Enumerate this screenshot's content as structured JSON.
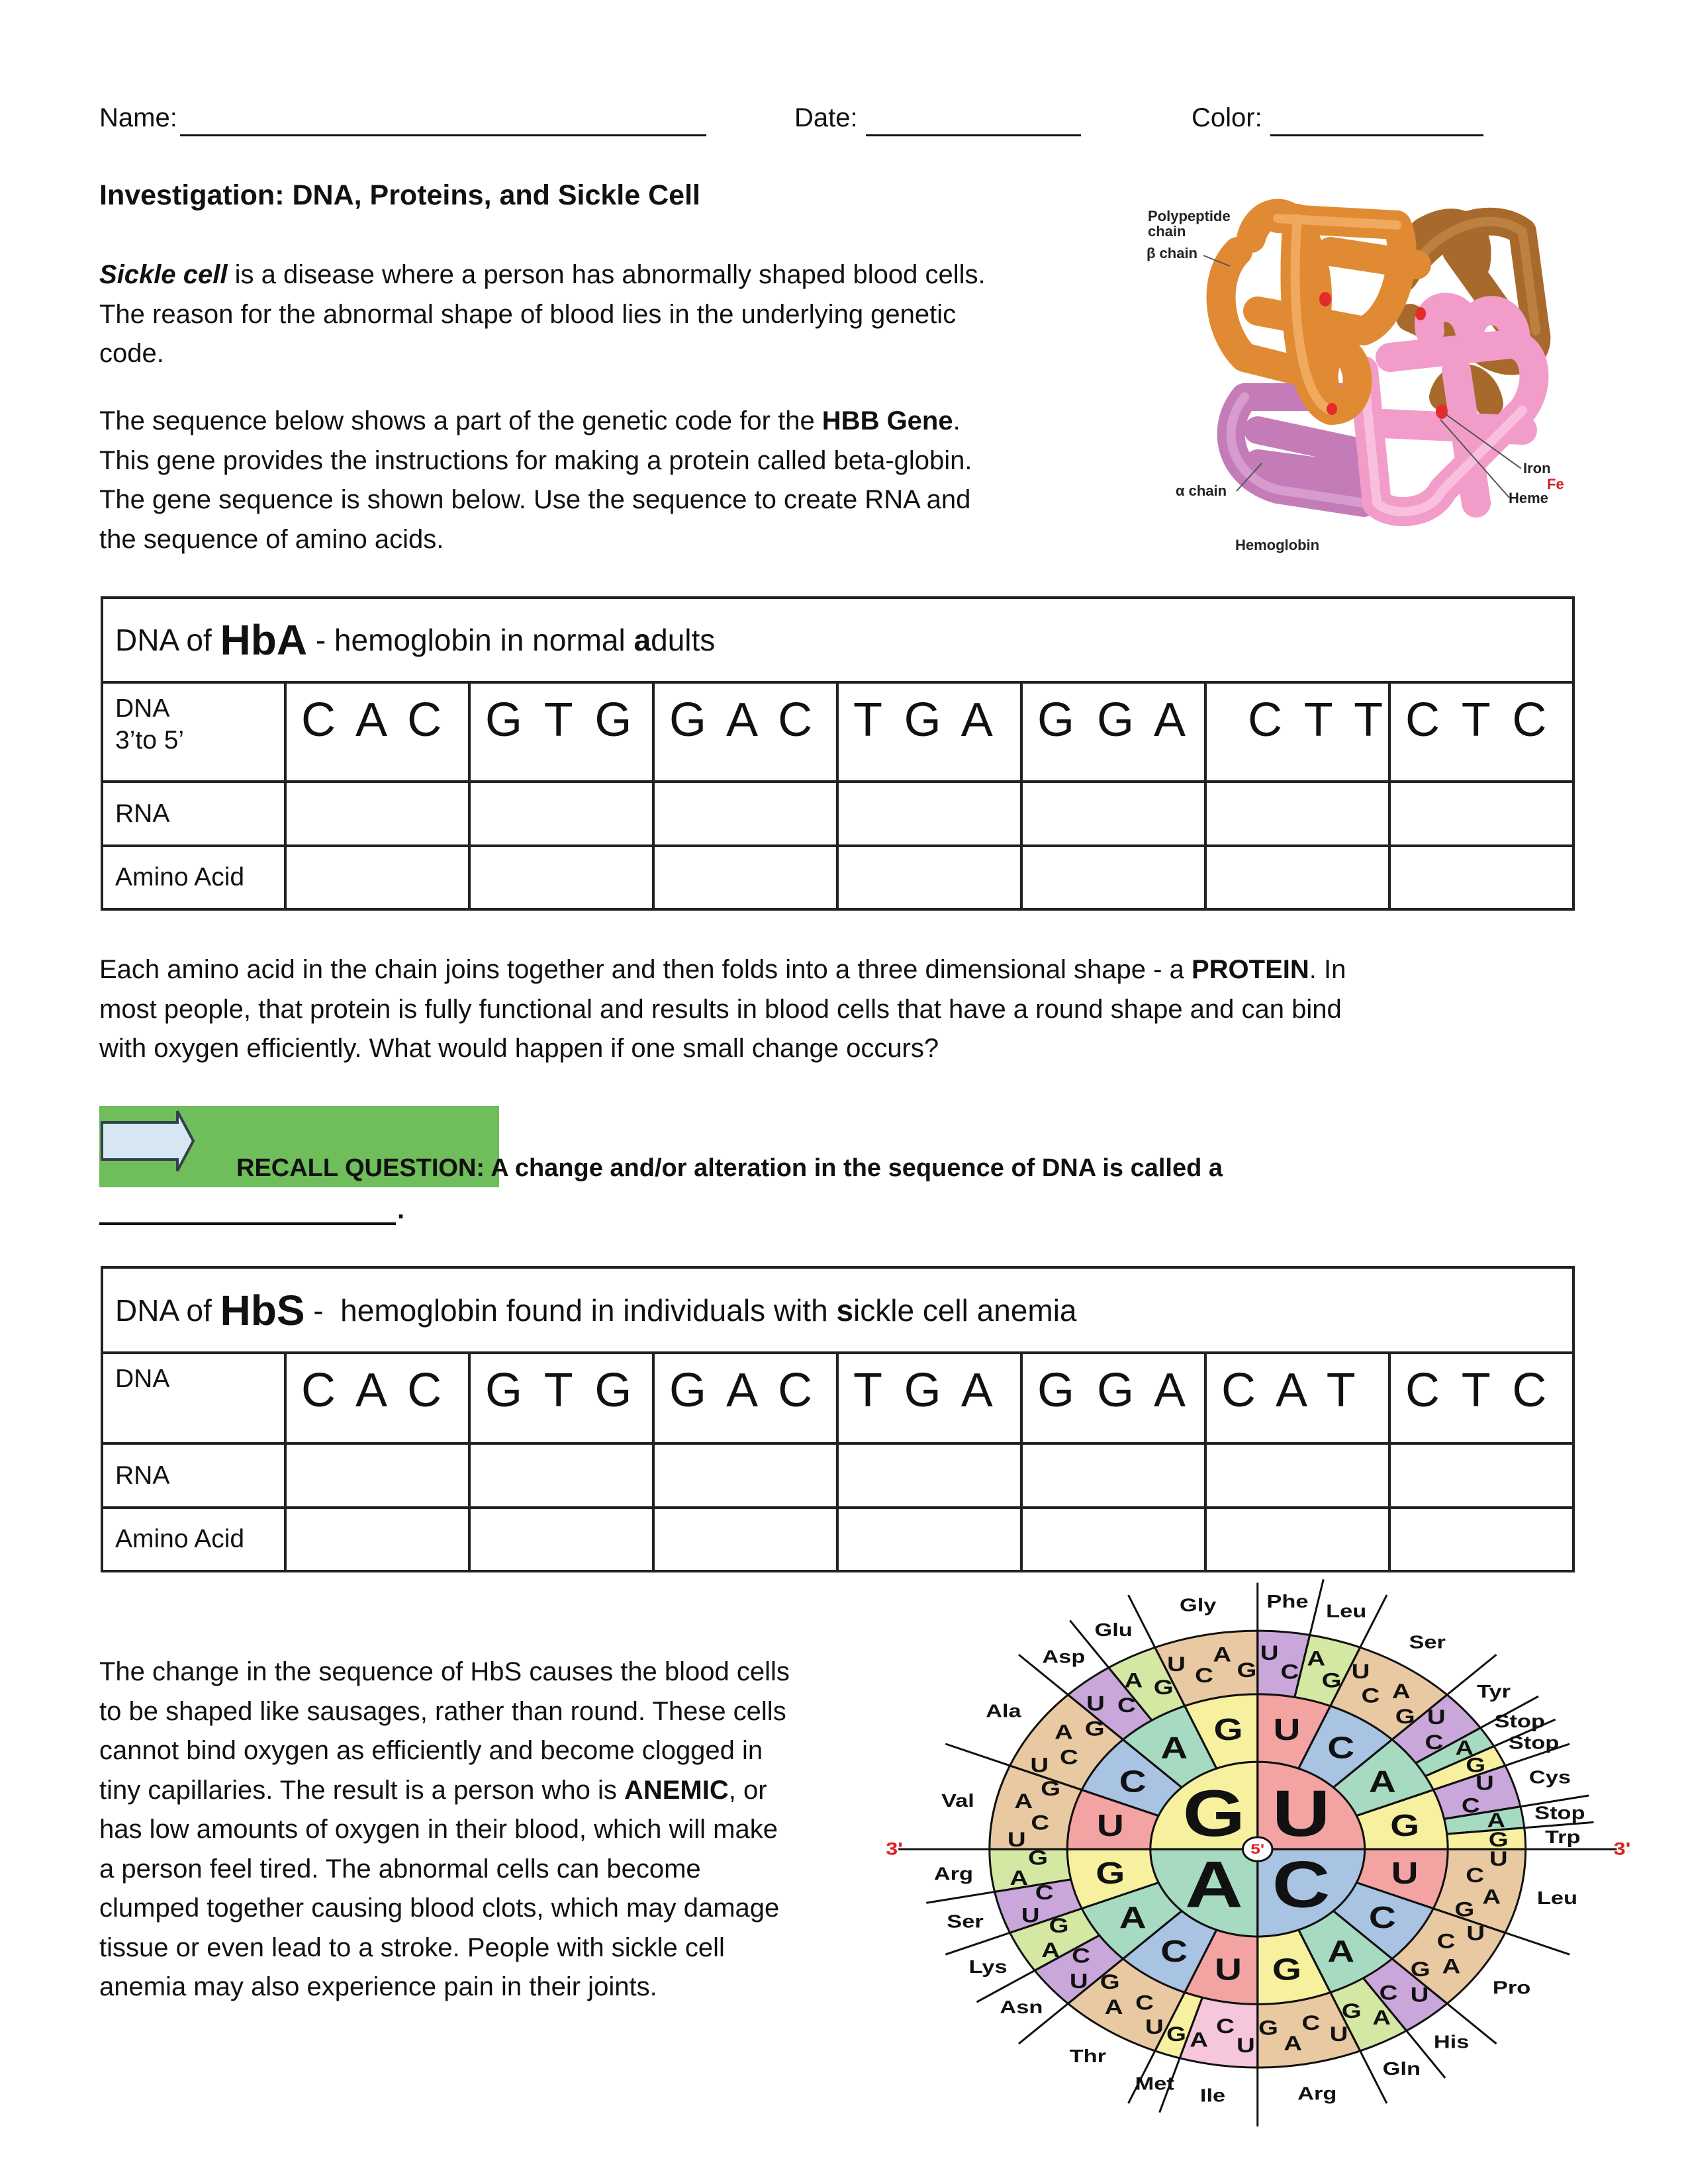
{
  "header": {
    "name_label": "Name:",
    "date_label": "Date:",
    "color_label": "Color:"
  },
  "title": "Investigation:  DNA, Proteins, and Sickle Cell",
  "paragraphs": {
    "p1": [
      [
        {
          "t": "Sickle cell",
          "s": "bi"
        },
        {
          "t": " is a disease where a person has abnormally shaped blood cells.",
          "s": ""
        }
      ],
      [
        {
          "t": "The reason for the abnormal shape of blood lies in the underlying genetic",
          "s": ""
        }
      ],
      [
        {
          "t": "code.",
          "s": ""
        }
      ]
    ],
    "p2": [
      [
        {
          "t": "The sequence below shows a part of the genetic code for the ",
          "s": ""
        },
        {
          "t": "HBB Gene",
          "s": "b"
        },
        {
          "t": ".",
          "s": ""
        }
      ],
      [
        {
          "t": "This gene provides the instructions for making a protein called beta-globin.",
          "s": ""
        }
      ],
      [
        {
          "t": "The gene sequence is shown below.   Use the sequence to create RNA and",
          "s": ""
        }
      ],
      [
        {
          "t": "the sequence of amino acids.",
          "s": ""
        }
      ]
    ],
    "p3": [
      [
        {
          "t": "Each amino acid in the chain joins together and then folds into a three dimensional shape - a ",
          "s": ""
        },
        {
          "t": "PROTEIN",
          "s": "b"
        },
        {
          "t": ".   In",
          "s": ""
        }
      ],
      [
        {
          "t": "most people, that protein is fully functional and results in blood cells that have a round shape and can bind",
          "s": ""
        }
      ],
      [
        {
          "t": "with oxygen efficiently.    What would happen if one small change occurs?",
          "s": ""
        }
      ]
    ],
    "p4": [
      [
        {
          "t": "The change in the sequence of HbS causes the blood cells",
          "s": ""
        }
      ],
      [
        {
          "t": "to be shaped like sausages, rather than round.  These cells",
          "s": ""
        }
      ],
      [
        {
          "t": "cannot bind oxygen as efficiently and become clogged in",
          "s": ""
        }
      ],
      [
        {
          "t": "tiny capillaries.  The result is a person who is ",
          "s": ""
        },
        {
          "t": "ANEMIC",
          "s": "b"
        },
        {
          "t": ", or",
          "s": ""
        }
      ],
      [
        {
          "t": "has low amounts of oxygen in their blood, which will make",
          "s": ""
        }
      ],
      [
        {
          "t": "a person feel tired.  The abnormal cells can become",
          "s": ""
        }
      ],
      [
        {
          "t": "clumped together causing blood clots, which may damage",
          "s": ""
        }
      ],
      [
        {
          "t": "tissue or even lead to a  stroke.  People with sickle cell",
          "s": ""
        }
      ],
      [
        {
          "t": "anemia may also experience pain in their joints.",
          "s": ""
        }
      ]
    ]
  },
  "hemoglobin_figure": {
    "polypeptide_label": [
      "Polypeptide",
      "chain"
    ],
    "beta_label": "β chain",
    "alpha_label": "α chain",
    "iron_label": "Iron",
    "fe_label": "Fe",
    "heme_label": "Heme",
    "caption": "Hemoglobin",
    "colors": {
      "beta_1": "#e08a33",
      "beta_2": "#a86a2c",
      "alpha_1": "#c47cb9",
      "alpha_2": "#f29cc9",
      "heme": "#e42b2b",
      "fe": "#d42020"
    }
  },
  "tables": [
    {
      "header": [
        {
          "t": "DNA of ",
          "s": ""
        },
        {
          "t": "HbA",
          "s": "big"
        },
        {
          "t": " - hemoglobin in normal ",
          "s": ""
        },
        {
          "t": "a",
          "s": "b"
        },
        {
          "t": "dults",
          "s": ""
        }
      ],
      "dna_label": [
        "DNA",
        "3’to 5’"
      ],
      "codons": [
        "C A C",
        "G T G",
        "G A C",
        "T G A",
        "G G A",
        "C T T",
        "C T C"
      ],
      "rna_label": "RNA",
      "rna": [
        "",
        "",
        "",
        "",
        "",
        "",
        ""
      ],
      "amino_label": "Amino Acid",
      "amino": [
        "",
        "",
        "",
        "",
        "",
        "",
        ""
      ]
    },
    {
      "header": [
        {
          "t": "DNA of ",
          "s": ""
        },
        {
          "t": "HbS",
          "s": "big"
        },
        {
          "t": " -  hemoglobin found in individuals with ",
          "s": ""
        },
        {
          "t": "s",
          "s": "b"
        },
        {
          "t": "ickle cell anemia",
          "s": ""
        }
      ],
      "dna_label": [
        "DNA"
      ],
      "codons": [
        "C A C",
        "G T G",
        "G A C",
        "T G A",
        "G G A",
        "C A T",
        "C T C"
      ],
      "rna_label": "RNA",
      "rna": [
        "",
        "",
        "",
        "",
        "",
        "",
        ""
      ],
      "amino_label": "Amino Acid",
      "amino": [
        "",
        "",
        "",
        "",
        "",
        "",
        ""
      ]
    }
  ],
  "recall": {
    "label": "RECALL QUESTION:",
    "question": " A change and/or alteration in the sequence of DNA is called a",
    "answer": "",
    "end_mark": ".",
    "box_color": "#6fbd5b",
    "arrow_icon": "right-arrow-icon"
  },
  "codon_wheel": {
    "bases": [
      "U",
      "C",
      "A",
      "G"
    ],
    "five_prime": "5'",
    "three_prime": "3'",
    "groups": {
      "UU": [
        [
          "UC",
          "Phe"
        ],
        [
          "AG",
          "Leu"
        ]
      ],
      "UC": [
        [
          "UCAG",
          "Ser"
        ]
      ],
      "UA": [
        [
          "UC",
          "Tyr"
        ],
        [
          "A",
          "Stop"
        ],
        [
          "G",
          "Stop"
        ]
      ],
      "UG": [
        [
          "UC",
          "Cys"
        ],
        [
          "A",
          "Stop"
        ],
        [
          "G",
          "Trp"
        ]
      ],
      "CU": [
        [
          "UCAG",
          "Leu"
        ]
      ],
      "CC": [
        [
          "UCAG",
          "Pro"
        ]
      ],
      "CA": [
        [
          "UC",
          "His"
        ],
        [
          "AG",
          "Gln"
        ]
      ],
      "CG": [
        [
          "UCAG",
          "Arg"
        ]
      ],
      "AU": [
        [
          "UCA",
          "Ile"
        ],
        [
          "G",
          "Met"
        ]
      ],
      "AC": [
        [
          "UCAG",
          "Thr"
        ]
      ],
      "AA": [
        [
          "UC",
          "Asn"
        ],
        [
          "AG",
          "Lys"
        ]
      ],
      "AG": [
        [
          "UC",
          "Ser"
        ],
        [
          "AG",
          "Arg"
        ]
      ],
      "GU": [
        [
          "UCAG",
          "Val"
        ]
      ],
      "GC": [
        [
          "UCAG",
          "Ala"
        ]
      ],
      "GA": [
        [
          "UC",
          "Asp"
        ],
        [
          "AG",
          "Glu"
        ]
      ],
      "GG": [
        [
          "UCAG",
          "Gly"
        ]
      ]
    },
    "base_colors": {
      "U": "#f4a3a3",
      "C": "#a9c3e3",
      "A": "#a7dbc1",
      "G": "#f7f19f"
    },
    "group_colors": {
      "four": "#e9c9a1",
      "pyrimidine_pair": "#c9a7da",
      "purine_pair": "#d4e8a4",
      "triple": "#f6c6dc"
    },
    "prime_color": "#e02020"
  }
}
